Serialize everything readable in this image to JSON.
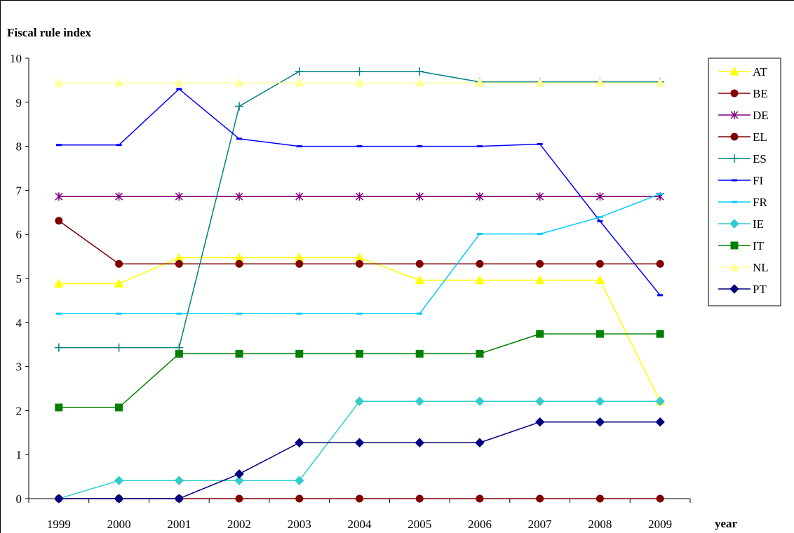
{
  "chart_data": {
    "type": "line",
    "ylabel": "Fiscal rule index",
    "xlabel": "year",
    "ylim": [
      0,
      10
    ],
    "yticks": [
      0,
      1,
      2,
      3,
      4,
      5,
      6,
      7,
      8,
      9,
      10
    ],
    "x": [
      "1999",
      "2000",
      "2001",
      "2002",
      "2003",
      "2004",
      "2005",
      "2006",
      "2007",
      "2008",
      "2009"
    ],
    "grid": false,
    "legend": "right",
    "series": [
      {
        "name": "AT",
        "color": "#ffff00",
        "marker": "triangle",
        "values": [
          4.88,
          4.88,
          5.47,
          5.47,
          5.47,
          5.47,
          4.96,
          4.96,
          4.96,
          4.96,
          2.21
        ]
      },
      {
        "name": "BE",
        "color": "#800000",
        "marker": "circle",
        "values": [
          0,
          0,
          0,
          0,
          0,
          0,
          0,
          0,
          0,
          0,
          0
        ]
      },
      {
        "name": "DE",
        "color": "#800080",
        "marker": "asterisk",
        "values": [
          6.86,
          6.86,
          6.86,
          6.86,
          6.86,
          6.86,
          6.86,
          6.86,
          6.86,
          6.86,
          6.86
        ]
      },
      {
        "name": "EL",
        "color": "#800000",
        "marker": "circle",
        "values": [
          6.31,
          5.33,
          5.33,
          5.33,
          5.33,
          5.33,
          5.33,
          5.33,
          5.33,
          5.33,
          5.33
        ]
      },
      {
        "name": "ES",
        "color": "#008080",
        "marker": "plus",
        "values": [
          3.43,
          3.43,
          3.43,
          8.91,
          9.7,
          9.7,
          9.7,
          9.46,
          9.46,
          9.46,
          9.46
        ]
      },
      {
        "name": "FI",
        "color": "#0000ff",
        "marker": "dash",
        "values": [
          8.03,
          8.03,
          9.3,
          8.17,
          8.0,
          8.0,
          8.0,
          8.0,
          8.05,
          6.3,
          4.62
        ]
      },
      {
        "name": "FR",
        "color": "#00ccff",
        "marker": "dash",
        "values": [
          4.2,
          4.2,
          4.2,
          4.2,
          4.2,
          4.2,
          4.2,
          6.01,
          6.01,
          6.39,
          6.92
        ]
      },
      {
        "name": "IE",
        "color": "#33cccc",
        "marker": "diamond",
        "values": [
          0,
          0.41,
          0.41,
          0.41,
          0.41,
          2.21,
          2.21,
          2.21,
          2.21,
          2.21,
          2.21
        ]
      },
      {
        "name": "IT",
        "color": "#008000",
        "marker": "square",
        "values": [
          2.07,
          2.07,
          3.29,
          3.29,
          3.29,
          3.29,
          3.29,
          3.29,
          3.74,
          3.74,
          3.74
        ]
      },
      {
        "name": "NL",
        "color": "#ffff99",
        "marker": "triangle",
        "values": [
          9.44,
          9.44,
          9.44,
          9.44,
          9.44,
          9.44,
          9.44,
          9.44,
          9.44,
          9.44,
          9.44
        ]
      },
      {
        "name": "PT",
        "color": "#000080",
        "marker": "diamond",
        "values": [
          0,
          0,
          0,
          0.56,
          1.27,
          1.27,
          1.27,
          1.27,
          1.74,
          1.74,
          1.74
        ]
      }
    ]
  }
}
